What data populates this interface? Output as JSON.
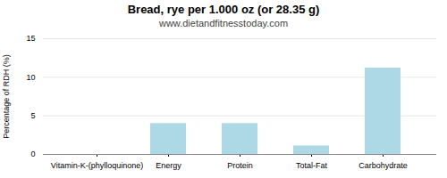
{
  "chart_data": {
    "type": "bar",
    "title": "Bread, rye per 1.000 oz (or 28.35 g)",
    "subtitle": "www.dietandfitnesstoday.com",
    "categories": [
      "Vitamin-K-(phylloquinone)",
      "Energy",
      "Protein",
      "Total-Fat",
      "Carbohydrate"
    ],
    "values": [
      0,
      4.0,
      4.0,
      1.1,
      11.2
    ],
    "color": "#add8e6",
    "ylabel": "Percentage of RDH (%)",
    "ylim": [
      0,
      15
    ],
    "yticks": [
      0,
      5,
      10,
      15
    ],
    "grid": true
  }
}
